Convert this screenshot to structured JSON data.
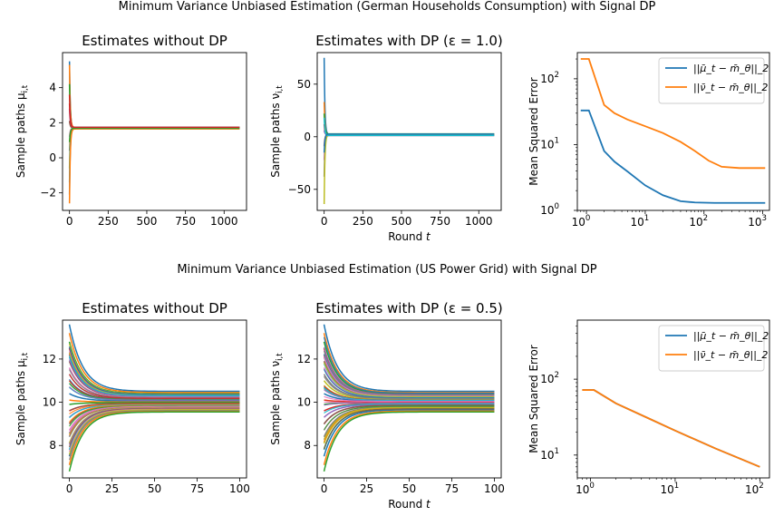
{
  "figure": {
    "suptitle_top": "Minimum Variance Unbiased Estimation (German Households Consumption) with Signal DP",
    "suptitle_bottom": "Minimum Variance Unbiased Estimation (US Power Grid) with Signal DP"
  },
  "colors": {
    "blue": "#1f77b4",
    "orange": "#ff7f0e",
    "palette": [
      "#1f77b4",
      "#ff7f0e",
      "#2ca02c",
      "#d62728",
      "#9467bd",
      "#8c564b",
      "#e377c2",
      "#7f7f7f",
      "#bcbd22",
      "#17becf"
    ]
  },
  "chart_data": [
    {
      "id": "top-left",
      "type": "line",
      "title": "Estimates without DP",
      "xlabel": "",
      "ylabel": "Sample paths μ_{i,t}",
      "xlim": [
        -45,
        1145
      ],
      "ylim": [
        -3,
        6
      ],
      "xticks": [
        0,
        250,
        500,
        750,
        1000
      ],
      "yticks": [
        -2,
        0,
        2,
        4
      ],
      "converge": 1.7,
      "initial_values": [
        5.5,
        5.3,
        4.2,
        3.6,
        2.8,
        2.1,
        1.2,
        0.4,
        -0.6,
        -1.4,
        -2.1,
        -2.6,
        0.9,
        3.1
      ],
      "legend": "none"
    },
    {
      "id": "top-middle",
      "type": "line",
      "title": "Estimates with DP (ε = 1.0)",
      "xlabel": "Round t",
      "ylabel": "Sample paths ν_{i,t}",
      "xlim": [
        -45,
        1145
      ],
      "ylim": [
        -70,
        80
      ],
      "xticks": [
        0,
        250,
        500,
        750,
        1000
      ],
      "yticks": [
        -50,
        0,
        50
      ],
      "converge": 2,
      "initial_values": [
        75,
        33,
        22,
        12,
        6,
        -9,
        -22,
        -38,
        -64,
        18,
        -15
      ],
      "legend": "none"
    },
    {
      "id": "top-right",
      "type": "line",
      "title": "",
      "xlabel": "",
      "ylabel": "Mean Squared Error",
      "xscale": "log",
      "yscale": "log",
      "xlim": [
        0.7,
        1300
      ],
      "ylim": [
        1,
        250
      ],
      "xtick_labels": [
        "10^0",
        "10^1",
        "10^2",
        "10^3"
      ],
      "ytick_labels": [
        "10^0",
        "10^1",
        "10^2"
      ],
      "legend": "top-right",
      "series": [
        {
          "name": "||μ̄_t − m̄_θ||_2",
          "color": "blue",
          "x": [
            0.8,
            1.1,
            2,
            3,
            5,
            10,
            20,
            40,
            70,
            150,
            500,
            1100
          ],
          "y": [
            33,
            33,
            8,
            5.5,
            3.9,
            2.4,
            1.7,
            1.38,
            1.32,
            1.3,
            1.3,
            1.3
          ]
        },
        {
          "name": "||ν̄_t − m̄_θ||_2",
          "color": "orange",
          "x": [
            0.8,
            1.1,
            2,
            3,
            5,
            10,
            20,
            40,
            70,
            120,
            200,
            400,
            1100
          ],
          "y": [
            200,
            200,
            40,
            30,
            24,
            19,
            15,
            11,
            8,
            5.7,
            4.6,
            4.4,
            4.4
          ]
        }
      ]
    },
    {
      "id": "bottom-left",
      "type": "line",
      "title": "Estimates without DP",
      "xlabel": "",
      "ylabel": "Sample paths μ_{i,t}",
      "xlim": [
        -4,
        104
      ],
      "ylim": [
        6.5,
        13.8
      ],
      "xticks": [
        0,
        25,
        50,
        75,
        100
      ],
      "yticks": [
        8,
        10,
        12
      ],
      "converge": 10,
      "initial_values": [
        13.6,
        13.2,
        12.8,
        12.5,
        12.2,
        11.9,
        11.6,
        11.3,
        11.0,
        10.7,
        10.4,
        10.1,
        9.9,
        9.6,
        9.3,
        9.0,
        8.7,
        8.4,
        8.1,
        7.8,
        7.5,
        7.1,
        6.8
      ],
      "legend": "none"
    },
    {
      "id": "bottom-middle",
      "type": "line",
      "title": "Estimates with DP (ε = 0.5)",
      "xlabel": "Round t",
      "ylabel": "Sample paths ν_{i,t}",
      "xlim": [
        -4,
        104
      ],
      "ylim": [
        6.5,
        13.8
      ],
      "xticks": [
        0,
        25,
        50,
        75,
        100
      ],
      "yticks": [
        8,
        10,
        12
      ],
      "converge": 10,
      "initial_values": [
        13.6,
        13.2,
        12.8,
        12.5,
        12.2,
        11.9,
        11.6,
        11.3,
        11.0,
        10.7,
        10.4,
        10.1,
        9.9,
        9.6,
        9.3,
        9.0,
        8.7,
        8.4,
        8.1,
        7.8,
        7.5,
        7.1,
        6.8
      ],
      "legend": "none"
    },
    {
      "id": "bottom-right",
      "type": "line",
      "title": "",
      "xlabel": "",
      "ylabel": "Mean Squared Error",
      "xscale": "log",
      "yscale": "log",
      "xlim": [
        0.7,
        130
      ],
      "ylim": [
        5,
        600
      ],
      "xtick_labels": [
        "10^0",
        "10^1",
        "10^2"
      ],
      "ytick_labels": [
        "10^1",
        "10^2"
      ],
      "legend": "top-right",
      "series": [
        {
          "name": "||μ̄_t − m̄_θ||_2",
          "color": "blue",
          "x": [
            0.8,
            1.1,
            2,
            5,
            10,
            30,
            100
          ],
          "y": [
            72,
            72,
            48,
            30,
            21,
            12.2,
            7
          ]
        },
        {
          "name": "||ν̄_t − m̄_θ||_2",
          "color": "orange",
          "x": [
            0.8,
            1.1,
            2,
            5,
            10,
            30,
            100
          ],
          "y": [
            72,
            72,
            48,
            30,
            21,
            12.2,
            7
          ]
        }
      ]
    }
  ]
}
